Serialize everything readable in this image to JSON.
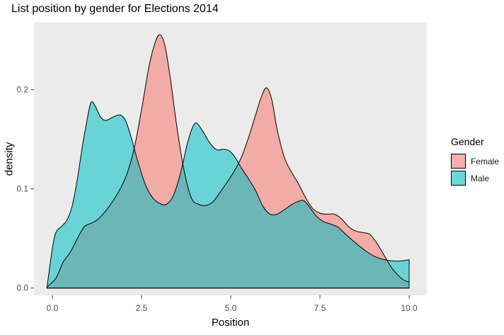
{
  "chart_data": {
    "type": "area",
    "subtype": "overlapping-density",
    "title": "List position by gender for Elections 2014",
    "xlabel": "Position",
    "ylabel": "density",
    "x_ticks": [
      "0.0",
      "2.5",
      "5.0",
      "7.5",
      "10.0"
    ],
    "x_tick_values": [
      0,
      2.5,
      5,
      7.5,
      10
    ],
    "y_ticks": [
      "0.0",
      "0.1",
      "0.2"
    ],
    "y_tick_values": [
      0,
      0.1,
      0.2
    ],
    "xlim": [
      -0.516,
      10.496
    ],
    "ylim": [
      -0.00736,
      0.2676
    ],
    "grid": false,
    "panel_bg": "#EBEBEB",
    "outline_color": "#000000",
    "tick_color": "#333333",
    "tick_label_color": "#4D4D4D",
    "fill_opacity": 0.55,
    "legend": {
      "title": "Gender",
      "position": "right",
      "entries": [
        {
          "label": "Female",
          "color": "#F8766D",
          "swatch_fill": "#F5AEA9"
        },
        {
          "label": "Male",
          "color": "#00BFC4",
          "swatch_fill": "#6DD6D9"
        }
      ]
    },
    "series": [
      {
        "name": "Female",
        "color": "#F8766D",
        "points": [
          [
            -0.15,
            0.001
          ],
          [
            0.1,
            0.01
          ],
          [
            0.3,
            0.026
          ],
          [
            0.5,
            0.036
          ],
          [
            0.7,
            0.05
          ],
          [
            0.9,
            0.062
          ],
          [
            1.1,
            0.0655
          ],
          [
            1.3,
            0.07
          ],
          [
            1.5,
            0.078
          ],
          [
            1.7,
            0.088
          ],
          [
            1.9,
            0.1
          ],
          [
            2.1,
            0.116
          ],
          [
            2.3,
            0.142
          ],
          [
            2.5,
            0.18
          ],
          [
            2.7,
            0.222
          ],
          [
            2.85,
            0.244
          ],
          [
            3.0,
            0.2555
          ],
          [
            3.15,
            0.245
          ],
          [
            3.3,
            0.213
          ],
          [
            3.5,
            0.16
          ],
          [
            3.7,
            0.117
          ],
          [
            3.9,
            0.0905
          ],
          [
            4.1,
            0.0845
          ],
          [
            4.3,
            0.0833
          ],
          [
            4.5,
            0.087
          ],
          [
            4.7,
            0.0965
          ],
          [
            4.9,
            0.107
          ],
          [
            5.1,
            0.118
          ],
          [
            5.3,
            0.132
          ],
          [
            5.5,
            0.152
          ],
          [
            5.7,
            0.175
          ],
          [
            5.85,
            0.192
          ],
          [
            6.0,
            0.202
          ],
          [
            6.15,
            0.19
          ],
          [
            6.3,
            0.16
          ],
          [
            6.5,
            0.132
          ],
          [
            6.7,
            0.117
          ],
          [
            6.9,
            0.105
          ],
          [
            7.1,
            0.091
          ],
          [
            7.3,
            0.08
          ],
          [
            7.5,
            0.0755
          ],
          [
            7.7,
            0.0745
          ],
          [
            7.9,
            0.0745
          ],
          [
            8.1,
            0.07
          ],
          [
            8.3,
            0.062
          ],
          [
            8.5,
            0.0575
          ],
          [
            8.7,
            0.056
          ],
          [
            8.9,
            0.054
          ],
          [
            9.1,
            0.045
          ],
          [
            9.3,
            0.033
          ],
          [
            9.5,
            0.021
          ],
          [
            9.7,
            0.0125
          ],
          [
            9.85,
            0.008
          ],
          [
            10.0,
            0.006
          ]
        ]
      },
      {
        "name": "Male",
        "color": "#00BFC4",
        "points": [
          [
            -0.15,
            0.001
          ],
          [
            0.0,
            0.04
          ],
          [
            0.1,
            0.056
          ],
          [
            0.25,
            0.062
          ],
          [
            0.4,
            0.068
          ],
          [
            0.55,
            0.082
          ],
          [
            0.7,
            0.11
          ],
          [
            0.85,
            0.145
          ],
          [
            0.95,
            0.165
          ],
          [
            1.08,
            0.187
          ],
          [
            1.2,
            0.1835
          ],
          [
            1.35,
            0.1725
          ],
          [
            1.5,
            0.169
          ],
          [
            1.7,
            0.1725
          ],
          [
            1.9,
            0.1745
          ],
          [
            2.05,
            0.169
          ],
          [
            2.2,
            0.153
          ],
          [
            2.4,
            0.127
          ],
          [
            2.6,
            0.105
          ],
          [
            2.8,
            0.0915
          ],
          [
            3.0,
            0.0855
          ],
          [
            3.2,
            0.0845
          ],
          [
            3.4,
            0.094
          ],
          [
            3.6,
            0.117
          ],
          [
            3.8,
            0.148
          ],
          [
            4.0,
            0.1662
          ],
          [
            4.2,
            0.159
          ],
          [
            4.4,
            0.147
          ],
          [
            4.6,
            0.1395
          ],
          [
            4.8,
            0.14
          ],
          [
            4.95,
            0.1385
          ],
          [
            5.1,
            0.133
          ],
          [
            5.3,
            0.121
          ],
          [
            5.5,
            0.11
          ],
          [
            5.7,
            0.098
          ],
          [
            5.9,
            0.0825
          ],
          [
            6.1,
            0.0745
          ],
          [
            6.3,
            0.0745
          ],
          [
            6.5,
            0.079
          ],
          [
            6.7,
            0.084
          ],
          [
            6.9,
            0.0875
          ],
          [
            7.05,
            0.088
          ],
          [
            7.2,
            0.082
          ],
          [
            7.4,
            0.0725
          ],
          [
            7.6,
            0.067
          ],
          [
            7.8,
            0.0645
          ],
          [
            8.0,
            0.0615
          ],
          [
            8.2,
            0.055
          ],
          [
            8.4,
            0.0485
          ],
          [
            8.6,
            0.0425
          ],
          [
            8.8,
            0.037
          ],
          [
            9.0,
            0.0325
          ],
          [
            9.2,
            0.0295
          ],
          [
            9.4,
            0.028
          ],
          [
            9.6,
            0.0272
          ],
          [
            9.8,
            0.0275
          ],
          [
            10.0,
            0.0285
          ]
        ]
      }
    ]
  }
}
